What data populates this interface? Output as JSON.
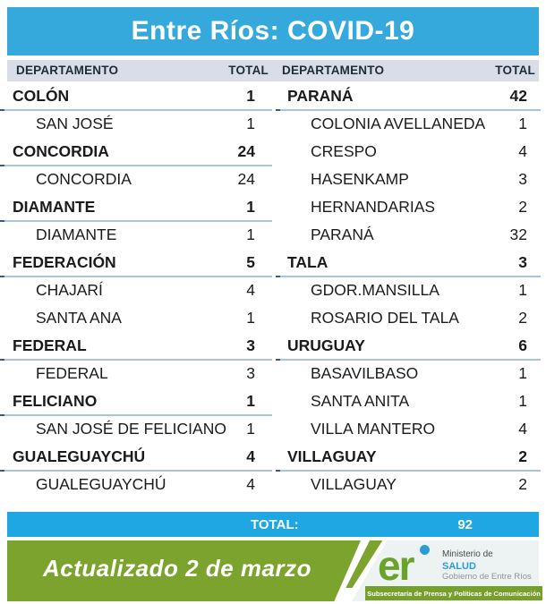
{
  "title": "Entre Ríos: COVID-19",
  "columns": {
    "department_1": "DEPARTAMENTO",
    "total_1": "TOTAL",
    "department_2": "DEPARTAMENTO",
    "total_2": "TOTAL"
  },
  "total_bar": {
    "label": "TOTAL:",
    "value": "92"
  },
  "footer": {
    "updated_text": "Actualizado 2 de marzo",
    "logo_text": "er",
    "ministry": {
      "line1": "Ministerio de",
      "line2": "SALUD",
      "line3": "Gobierno de Entre Ríos"
    },
    "press_bar": "Subsecretaría de Prensa y Políticas de Comunicación"
  },
  "colors": {
    "header_blue": "#35A9DC",
    "total_bar_blue": "#1EA7E2",
    "band_green": "#7BA32D",
    "column_header_bg": "#D9DDE7",
    "underline_blue": "#AAC4DA",
    "salud_blue": "#2B9CD8"
  },
  "chart_data": {
    "type": "table",
    "title": "Entre Ríos: COVID-19",
    "columns": [
      "DEPARTAMENTO",
      "TOTAL"
    ],
    "grand_total": 92,
    "tables": [
      {
        "rows": [
          {
            "name": "COLÓN",
            "value": 1,
            "kind": "department"
          },
          {
            "name": "SAN JOSÉ",
            "value": 1,
            "kind": "locality"
          },
          {
            "name": "CONCORDIA",
            "value": 24,
            "kind": "department"
          },
          {
            "name": "CONCORDIA",
            "value": 24,
            "kind": "locality"
          },
          {
            "name": "DIAMANTE",
            "value": 1,
            "kind": "department"
          },
          {
            "name": "DIAMANTE",
            "value": 1,
            "kind": "locality"
          },
          {
            "name": "FEDERACIÓN",
            "value": 5,
            "kind": "department"
          },
          {
            "name": "CHAJARÍ",
            "value": 4,
            "kind": "locality"
          },
          {
            "name": "SANTA ANA",
            "value": 1,
            "kind": "locality"
          },
          {
            "name": "FEDERAL",
            "value": 3,
            "kind": "department"
          },
          {
            "name": "FEDERAL",
            "value": 3,
            "kind": "locality"
          },
          {
            "name": "FELICIANO",
            "value": 1,
            "kind": "department"
          },
          {
            "name": "SAN JOSÉ DE FELICIANO",
            "value": 1,
            "kind": "locality"
          },
          {
            "name": "GUALEGUAYCHÚ",
            "value": 4,
            "kind": "department"
          },
          {
            "name": "GUALEGUAYCHÚ",
            "value": 4,
            "kind": "locality"
          }
        ]
      },
      {
        "rows": [
          {
            "name": "PARANÁ",
            "value": 42,
            "kind": "department"
          },
          {
            "name": "COLONIA AVELLANEDA",
            "value": 1,
            "kind": "locality"
          },
          {
            "name": "CRESPO",
            "value": 4,
            "kind": "locality"
          },
          {
            "name": "HASENKAMP",
            "value": 3,
            "kind": "locality"
          },
          {
            "name": "HERNANDARIAS",
            "value": 2,
            "kind": "locality"
          },
          {
            "name": "PARANÁ",
            "value": 32,
            "kind": "locality"
          },
          {
            "name": "TALA",
            "value": 3,
            "kind": "department"
          },
          {
            "name": "GDOR.MANSILLA",
            "value": 1,
            "kind": "locality"
          },
          {
            "name": "ROSARIO DEL TALA",
            "value": 2,
            "kind": "locality"
          },
          {
            "name": "URUGUAY",
            "value": 6,
            "kind": "department"
          },
          {
            "name": "BASAVILBASO",
            "value": 1,
            "kind": "locality"
          },
          {
            "name": "SANTA ANITA",
            "value": 1,
            "kind": "locality"
          },
          {
            "name": "VILLA MANTERO",
            "value": 4,
            "kind": "locality"
          },
          {
            "name": "VILLAGUAY",
            "value": 2,
            "kind": "department"
          },
          {
            "name": "VILLAGUAY",
            "value": 2,
            "kind": "locality"
          }
        ]
      }
    ]
  }
}
